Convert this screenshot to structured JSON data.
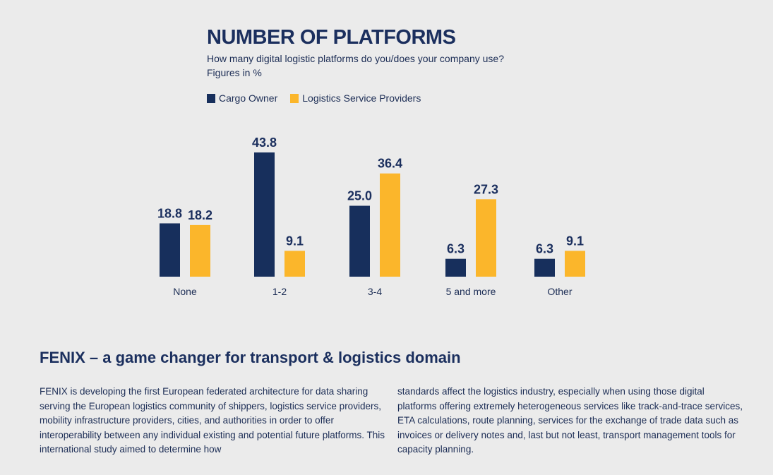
{
  "chart_data": {
    "type": "bar",
    "title": "NUMBER OF PLATFORMS",
    "subtitle": "How many digital logistic platforms do you/does your company use?",
    "units_note": "Figures in %",
    "categories": [
      "None",
      "1-2",
      "3-4",
      "5 and more",
      "Other"
    ],
    "series": [
      {
        "name": "Cargo Owner",
        "values": [
          18.8,
          43.8,
          25.0,
          6.3,
          6.3
        ],
        "labels": [
          "18.8",
          "43.8",
          "25.0",
          "6.3",
          "6.3"
        ],
        "color": "#172f5c"
      },
      {
        "name": "Logistics Service Providers",
        "values": [
          18.2,
          9.1,
          36.4,
          27.3,
          9.1
        ],
        "labels": [
          "18.2",
          "9.1",
          "36.4",
          "27.3",
          "9.1"
        ],
        "color": "#fbb62b"
      }
    ],
    "ylim": [
      0,
      45
    ],
    "grid": false,
    "legend_position": "top-left"
  },
  "section": {
    "title": "FENIX – a game changer for transport & logistics domain",
    "left_text": "FENIX is developing the first European federated architecture for data sharing serving the European logistics community of shippers, logistics service providers, mobility infrastructure providers, cities, and authorities in order to offer interoperability between any individual existing and potential future platforms. This international study aimed to determine how",
    "right_text": "standards affect the logistics industry, especially when using those digital platforms offering extremely heterogeneous services like track-and-trace services, ETA calculations, route planning, services for the exchange of trade data such as invoices or delivery notes and, last but not least, transport management tools for capacity planning."
  }
}
